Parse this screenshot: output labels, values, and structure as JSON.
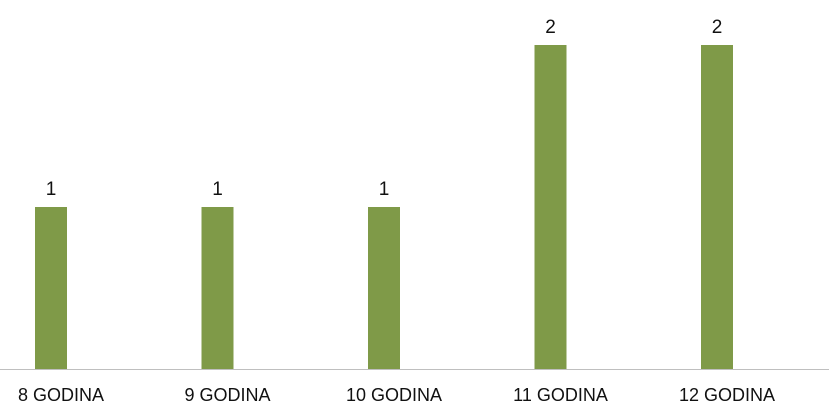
{
  "chart_data": {
    "type": "bar",
    "categories": [
      "8 GODINA",
      "9 GODINA",
      "10 GODINA",
      "11 GODINA",
      "12 GODINA"
    ],
    "values": [
      1,
      1,
      1,
      2,
      2
    ],
    "data_labels": [
      "1",
      "1",
      "1",
      "2",
      "2"
    ],
    "title": "",
    "xlabel": "",
    "ylabel": "",
    "ylim": [
      0,
      2
    ],
    "grid": false,
    "legend": "none",
    "bar_color": "#7F9A48",
    "axis_color": "#BFBFBF"
  }
}
